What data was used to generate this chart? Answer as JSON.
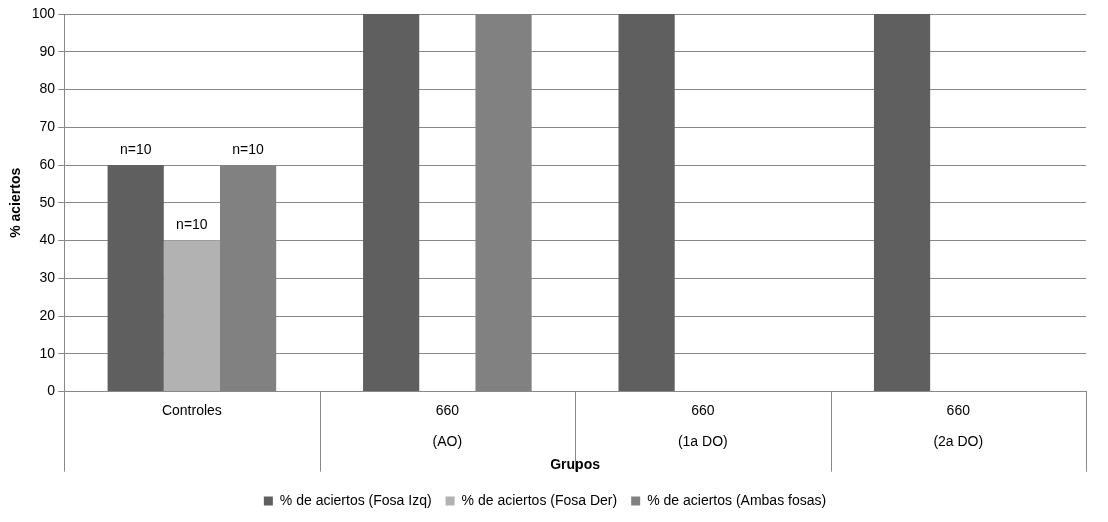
{
  "chart_data": {
    "type": "bar",
    "xlabel": "Grupos",
    "ylabel": "% aciertos",
    "categories": [
      "Controles",
      "660\n(AO)",
      "660\n(1a DO)",
      "660\n(2a DO)"
    ],
    "series": [
      {
        "name": "% de aciertos (Fosa Izq)",
        "color": "#5f5f5f",
        "values": [
          60,
          100,
          100,
          100
        ]
      },
      {
        "name": "% de aciertos (Fosa Der)",
        "color": "#b2b2b2",
        "values": [
          40,
          0,
          0,
          0
        ]
      },
      {
        "name": "% de aciertos (Ambas fosas)",
        "color": "#818181",
        "values": [
          60,
          100,
          0,
          0
        ]
      }
    ],
    "annotations": [
      "n=10",
      "n=10",
      "n=10"
    ],
    "ylim": [
      0,
      100
    ],
    "yticks": [
      0,
      10,
      20,
      30,
      40,
      50,
      60,
      70,
      80,
      90,
      100
    ],
    "grid": "y",
    "legend": "bottom"
  }
}
